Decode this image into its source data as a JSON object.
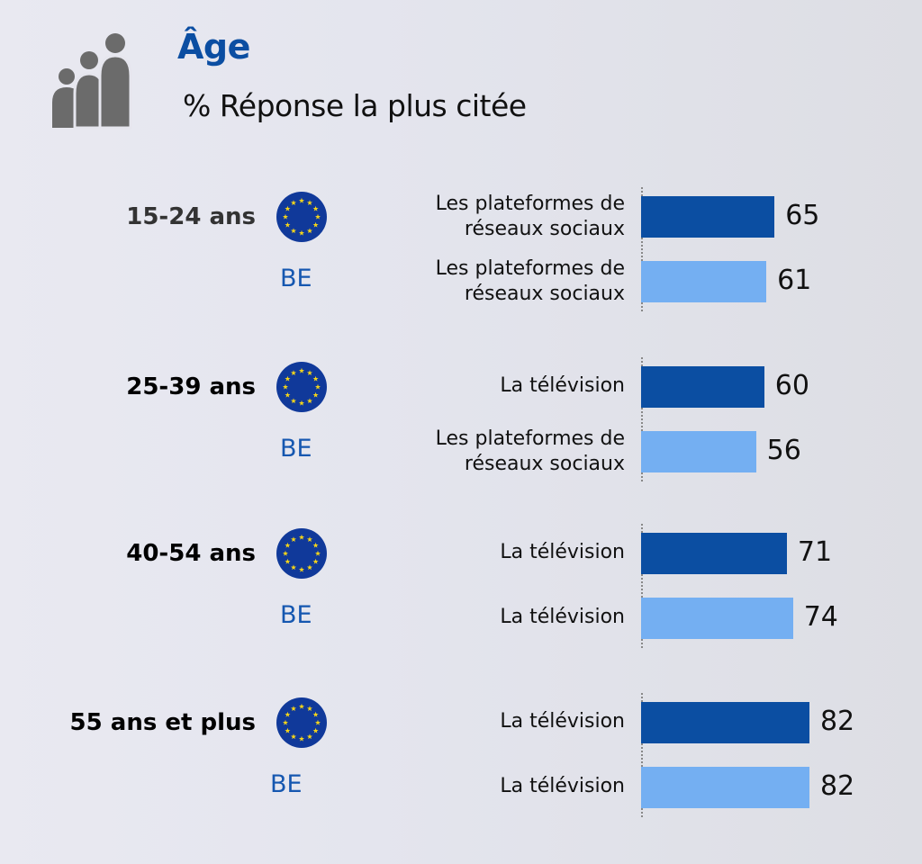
{
  "header": {
    "title": "Âge",
    "subtitle": "% Réponse la plus citée",
    "icon": "people-age-icon"
  },
  "colors": {
    "eu_bar": "#0b4ea2",
    "be_bar": "#74aff2",
    "title": "#0b4ea2",
    "be_label": "#1557b0"
  },
  "chart_data": {
    "type": "bar",
    "orientation": "horizontal",
    "title": "Âge",
    "subtitle": "% Réponse la plus citée",
    "xlabel": "",
    "ylabel": "",
    "xlim": [
      0,
      100
    ],
    "grid": false,
    "series_names": [
      "EU",
      "BE"
    ],
    "groups": [
      {
        "label": "15-24 ans",
        "be_label": "BE",
        "rows": [
          {
            "series": "EU",
            "answer": "Les plateformes de réseaux sociaux",
            "value": 65
          },
          {
            "series": "BE",
            "answer": "Les plateformes de réseaux sociaux",
            "value": 61
          }
        ]
      },
      {
        "label": "25-39 ans",
        "be_label": "BE",
        "rows": [
          {
            "series": "EU",
            "answer": "La télévision",
            "value": 60
          },
          {
            "series": "BE",
            "answer": "Les plateformes de réseaux sociaux",
            "value": 56
          }
        ]
      },
      {
        "label": "40-54 ans",
        "be_label": "BE",
        "rows": [
          {
            "series": "EU",
            "answer": "La télévision",
            "value": 71
          },
          {
            "series": "BE",
            "answer": "La télévision",
            "value": 74
          }
        ]
      },
      {
        "label": "55 ans et plus",
        "be_label": "BE",
        "rows": [
          {
            "series": "EU",
            "answer": "La télévision",
            "value": 82
          },
          {
            "series": "BE",
            "answer": "La télévision",
            "value": 82
          }
        ]
      }
    ]
  }
}
